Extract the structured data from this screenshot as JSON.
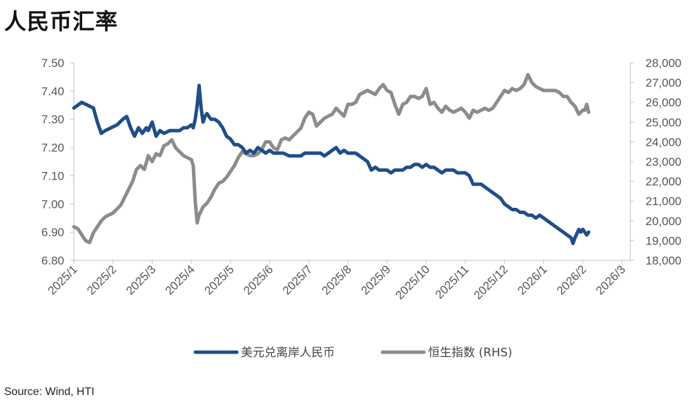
{
  "header": {
    "title": "人民币汇率"
  },
  "footer": {
    "source": "Source: Wind, HTI"
  },
  "chart_data": {
    "type": "line",
    "title": "人民币汇率",
    "y_left_lim": [
      6.8,
      7.5
    ],
    "y_left_ticks": [
      "7.50",
      "7.40",
      "7.30",
      "7.20",
      "7.10",
      "7.00",
      "6.90",
      "6.80"
    ],
    "y_right_lim": [
      18000,
      28000
    ],
    "y_right_ticks": [
      "28,000",
      "27,000",
      "26,000",
      "25,000",
      "24,000",
      "23,000",
      "22,000",
      "21,000",
      "20,000",
      "19,000",
      "18,000"
    ],
    "x_tick_labels": [
      "2025/1",
      "2025/2",
      "2025/3",
      "2025/4",
      "2025/5",
      "2025/6",
      "2025/7",
      "2025/8",
      "2025/9",
      "2025/10",
      "2025/11",
      "2025/12",
      "2026/1",
      "2026/2",
      "2026/3"
    ],
    "legend_position": "bottom",
    "grid": false,
    "series": [
      {
        "name": "美元兑离岸人民币",
        "axis": "left",
        "color": "#1f4e89",
        "points": [
          [
            0.0,
            7.34
          ],
          [
            0.1,
            7.35
          ],
          [
            0.2,
            7.36
          ],
          [
            0.35,
            7.35
          ],
          [
            0.5,
            7.34
          ],
          [
            0.6,
            7.29
          ],
          [
            0.7,
            7.25
          ],
          [
            0.8,
            7.26
          ],
          [
            0.95,
            7.27
          ],
          [
            1.1,
            7.28
          ],
          [
            1.25,
            7.3
          ],
          [
            1.35,
            7.31
          ],
          [
            1.45,
            7.27
          ],
          [
            1.55,
            7.24
          ],
          [
            1.65,
            7.27
          ],
          [
            1.75,
            7.25
          ],
          [
            1.85,
            7.27
          ],
          [
            1.9,
            7.26
          ],
          [
            2.0,
            7.29
          ],
          [
            2.1,
            7.24
          ],
          [
            2.2,
            7.26
          ],
          [
            2.3,
            7.25
          ],
          [
            2.45,
            7.26
          ],
          [
            2.55,
            7.26
          ],
          [
            2.7,
            7.26
          ],
          [
            2.8,
            7.27
          ],
          [
            2.9,
            7.27
          ],
          [
            3.0,
            7.28
          ],
          [
            3.05,
            7.27
          ],
          [
            3.1,
            7.3
          ],
          [
            3.15,
            7.35
          ],
          [
            3.2,
            7.42
          ],
          [
            3.25,
            7.34
          ],
          [
            3.3,
            7.29
          ],
          [
            3.35,
            7.31
          ],
          [
            3.4,
            7.32
          ],
          [
            3.5,
            7.3
          ],
          [
            3.6,
            7.3
          ],
          [
            3.7,
            7.29
          ],
          [
            3.8,
            7.27
          ],
          [
            3.9,
            7.24
          ],
          [
            4.0,
            7.23
          ],
          [
            4.1,
            7.21
          ],
          [
            4.2,
            7.21
          ],
          [
            4.3,
            7.2
          ],
          [
            4.4,
            7.18
          ],
          [
            4.5,
            7.19
          ],
          [
            4.6,
            7.18
          ],
          [
            4.7,
            7.2
          ],
          [
            4.8,
            7.19
          ],
          [
            4.9,
            7.18
          ],
          [
            5.0,
            7.19
          ],
          [
            5.1,
            7.18
          ],
          [
            5.2,
            7.18
          ],
          [
            5.35,
            7.18
          ],
          [
            5.5,
            7.17
          ],
          [
            5.6,
            7.17
          ],
          [
            5.7,
            7.17
          ],
          [
            5.8,
            7.17
          ],
          [
            5.9,
            7.18
          ],
          [
            6.0,
            7.18
          ],
          [
            6.1,
            7.18
          ],
          [
            6.2,
            7.18
          ],
          [
            6.3,
            7.18
          ],
          [
            6.4,
            7.17
          ],
          [
            6.5,
            7.18
          ],
          [
            6.6,
            7.19
          ],
          [
            6.7,
            7.2
          ],
          [
            6.8,
            7.18
          ],
          [
            6.9,
            7.19
          ],
          [
            7.0,
            7.18
          ],
          [
            7.1,
            7.18
          ],
          [
            7.2,
            7.18
          ],
          [
            7.3,
            7.17
          ],
          [
            7.4,
            7.16
          ],
          [
            7.5,
            7.15
          ],
          [
            7.6,
            7.12
          ],
          [
            7.7,
            7.13
          ],
          [
            7.8,
            7.12
          ],
          [
            7.9,
            7.12
          ],
          [
            8.0,
            7.12
          ],
          [
            8.1,
            7.11
          ],
          [
            8.2,
            7.12
          ],
          [
            8.3,
            7.12
          ],
          [
            8.4,
            7.12
          ],
          [
            8.5,
            7.13
          ],
          [
            8.6,
            7.13
          ],
          [
            8.7,
            7.14
          ],
          [
            8.8,
            7.14
          ],
          [
            8.9,
            7.13
          ],
          [
            9.0,
            7.14
          ],
          [
            9.1,
            7.13
          ],
          [
            9.2,
            7.13
          ],
          [
            9.3,
            7.12
          ],
          [
            9.4,
            7.11
          ],
          [
            9.5,
            7.12
          ],
          [
            9.6,
            7.12
          ],
          [
            9.7,
            7.12
          ],
          [
            9.8,
            7.11
          ],
          [
            9.9,
            7.11
          ],
          [
            10.0,
            7.11
          ],
          [
            10.1,
            7.1
          ],
          [
            10.2,
            7.07
          ],
          [
            10.3,
            7.07
          ],
          [
            10.4,
            7.07
          ],
          [
            10.5,
            7.06
          ],
          [
            10.6,
            7.05
          ],
          [
            10.7,
            7.04
          ],
          [
            10.8,
            7.03
          ],
          [
            10.9,
            7.02
          ],
          [
            11.0,
            7.0
          ],
          [
            11.1,
            6.99
          ],
          [
            11.2,
            6.98
          ],
          [
            11.3,
            6.98
          ],
          [
            11.4,
            6.97
          ],
          [
            11.5,
            6.97
          ],
          [
            11.6,
            6.96
          ],
          [
            11.7,
            6.96
          ],
          [
            11.8,
            6.95
          ],
          [
            11.9,
            6.96
          ],
          [
            12.0,
            6.95
          ],
          [
            12.1,
            6.94
          ],
          [
            12.2,
            6.93
          ],
          [
            12.3,
            6.92
          ],
          [
            12.4,
            6.91
          ],
          [
            12.5,
            6.9
          ],
          [
            12.6,
            6.89
          ],
          [
            12.7,
            6.88
          ],
          [
            12.75,
            6.86
          ],
          [
            12.8,
            6.88
          ],
          [
            12.9,
            6.91
          ],
          [
            12.95,
            6.9
          ],
          [
            13.0,
            6.91
          ],
          [
            13.05,
            6.9
          ],
          [
            13.1,
            6.89
          ],
          [
            13.15,
            6.9
          ]
        ]
      },
      {
        "name": "恒生指数 (RHS)",
        "axis": "right",
        "color": "#8c8c8c",
        "points": [
          [
            0.0,
            19700
          ],
          [
            0.1,
            19600
          ],
          [
            0.2,
            19300
          ],
          [
            0.3,
            19000
          ],
          [
            0.4,
            18900
          ],
          [
            0.5,
            19400
          ],
          [
            0.6,
            19700
          ],
          [
            0.7,
            20000
          ],
          [
            0.8,
            20200
          ],
          [
            0.9,
            20300
          ],
          [
            1.0,
            20400
          ],
          [
            1.1,
            20600
          ],
          [
            1.2,
            20800
          ],
          [
            1.3,
            21200
          ],
          [
            1.4,
            21600
          ],
          [
            1.5,
            22000
          ],
          [
            1.6,
            22600
          ],
          [
            1.7,
            22800
          ],
          [
            1.8,
            22600
          ],
          [
            1.9,
            23300
          ],
          [
            2.0,
            23000
          ],
          [
            2.1,
            23400
          ],
          [
            2.2,
            23300
          ],
          [
            2.3,
            23800
          ],
          [
            2.4,
            23900
          ],
          [
            2.5,
            24100
          ],
          [
            2.6,
            23700
          ],
          [
            2.7,
            23500
          ],
          [
            2.8,
            23300
          ],
          [
            2.9,
            23200
          ],
          [
            3.0,
            23100
          ],
          [
            3.05,
            22800
          ],
          [
            3.1,
            21000
          ],
          [
            3.15,
            19900
          ],
          [
            3.2,
            20300
          ],
          [
            3.3,
            20700
          ],
          [
            3.4,
            20900
          ],
          [
            3.5,
            21200
          ],
          [
            3.6,
            21600
          ],
          [
            3.7,
            21900
          ],
          [
            3.8,
            22000
          ],
          [
            3.9,
            22200
          ],
          [
            4.0,
            22500
          ],
          [
            4.1,
            22800
          ],
          [
            4.2,
            23200
          ],
          [
            4.3,
            23500
          ],
          [
            4.4,
            23400
          ],
          [
            4.5,
            23300
          ],
          [
            4.6,
            23300
          ],
          [
            4.7,
            23400
          ],
          [
            4.8,
            23600
          ],
          [
            4.9,
            24000
          ],
          [
            5.0,
            24000
          ],
          [
            5.1,
            23700
          ],
          [
            5.2,
            23600
          ],
          [
            5.3,
            24100
          ],
          [
            5.4,
            24200
          ],
          [
            5.5,
            24100
          ],
          [
            5.6,
            24300
          ],
          [
            5.7,
            24500
          ],
          [
            5.8,
            24700
          ],
          [
            5.9,
            25200
          ],
          [
            6.0,
            25500
          ],
          [
            6.1,
            25400
          ],
          [
            6.2,
            24800
          ],
          [
            6.3,
            25000
          ],
          [
            6.4,
            25200
          ],
          [
            6.5,
            25300
          ],
          [
            6.6,
            25400
          ],
          [
            6.7,
            25700
          ],
          [
            6.8,
            25500
          ],
          [
            6.9,
            25300
          ],
          [
            7.0,
            25900
          ],
          [
            7.1,
            25900
          ],
          [
            7.2,
            26000
          ],
          [
            7.3,
            26400
          ],
          [
            7.4,
            26500
          ],
          [
            7.5,
            26600
          ],
          [
            7.6,
            26500
          ],
          [
            7.7,
            26400
          ],
          [
            7.8,
            26700
          ],
          [
            7.9,
            26900
          ],
          [
            8.0,
            26600
          ],
          [
            8.1,
            26500
          ],
          [
            8.2,
            25900
          ],
          [
            8.3,
            25400
          ],
          [
            8.4,
            25900
          ],
          [
            8.5,
            26000
          ],
          [
            8.6,
            26300
          ],
          [
            8.7,
            26300
          ],
          [
            8.8,
            26200
          ],
          [
            8.9,
            26300
          ],
          [
            9.0,
            26700
          ],
          [
            9.1,
            25900
          ],
          [
            9.2,
            26000
          ],
          [
            9.3,
            25700
          ],
          [
            9.4,
            25500
          ],
          [
            9.5,
            25800
          ],
          [
            9.6,
            25600
          ],
          [
            9.7,
            25500
          ],
          [
            9.8,
            25600
          ],
          [
            9.9,
            25700
          ],
          [
            10.0,
            25500
          ],
          [
            10.1,
            25200
          ],
          [
            10.2,
            25600
          ],
          [
            10.3,
            25500
          ],
          [
            10.4,
            25600
          ],
          [
            10.5,
            25700
          ],
          [
            10.6,
            25600
          ],
          [
            10.7,
            25700
          ],
          [
            10.8,
            26000
          ],
          [
            10.9,
            26300
          ],
          [
            11.0,
            26600
          ],
          [
            11.1,
            26500
          ],
          [
            11.2,
            26700
          ],
          [
            11.3,
            26600
          ],
          [
            11.4,
            26700
          ],
          [
            11.5,
            26900
          ],
          [
            11.6,
            27400
          ],
          [
            11.7,
            27000
          ],
          [
            11.8,
            26800
          ],
          [
            11.9,
            26700
          ],
          [
            12.0,
            26600
          ],
          [
            12.1,
            26600
          ],
          [
            12.2,
            26600
          ],
          [
            12.3,
            26600
          ],
          [
            12.4,
            26500
          ],
          [
            12.5,
            26300
          ],
          [
            12.6,
            26300
          ],
          [
            12.7,
            26000
          ],
          [
            12.8,
            25800
          ],
          [
            12.9,
            25400
          ],
          [
            13.0,
            25600
          ],
          [
            13.05,
            25600
          ],
          [
            13.1,
            25900
          ],
          [
            13.15,
            25500
          ]
        ]
      }
    ]
  }
}
